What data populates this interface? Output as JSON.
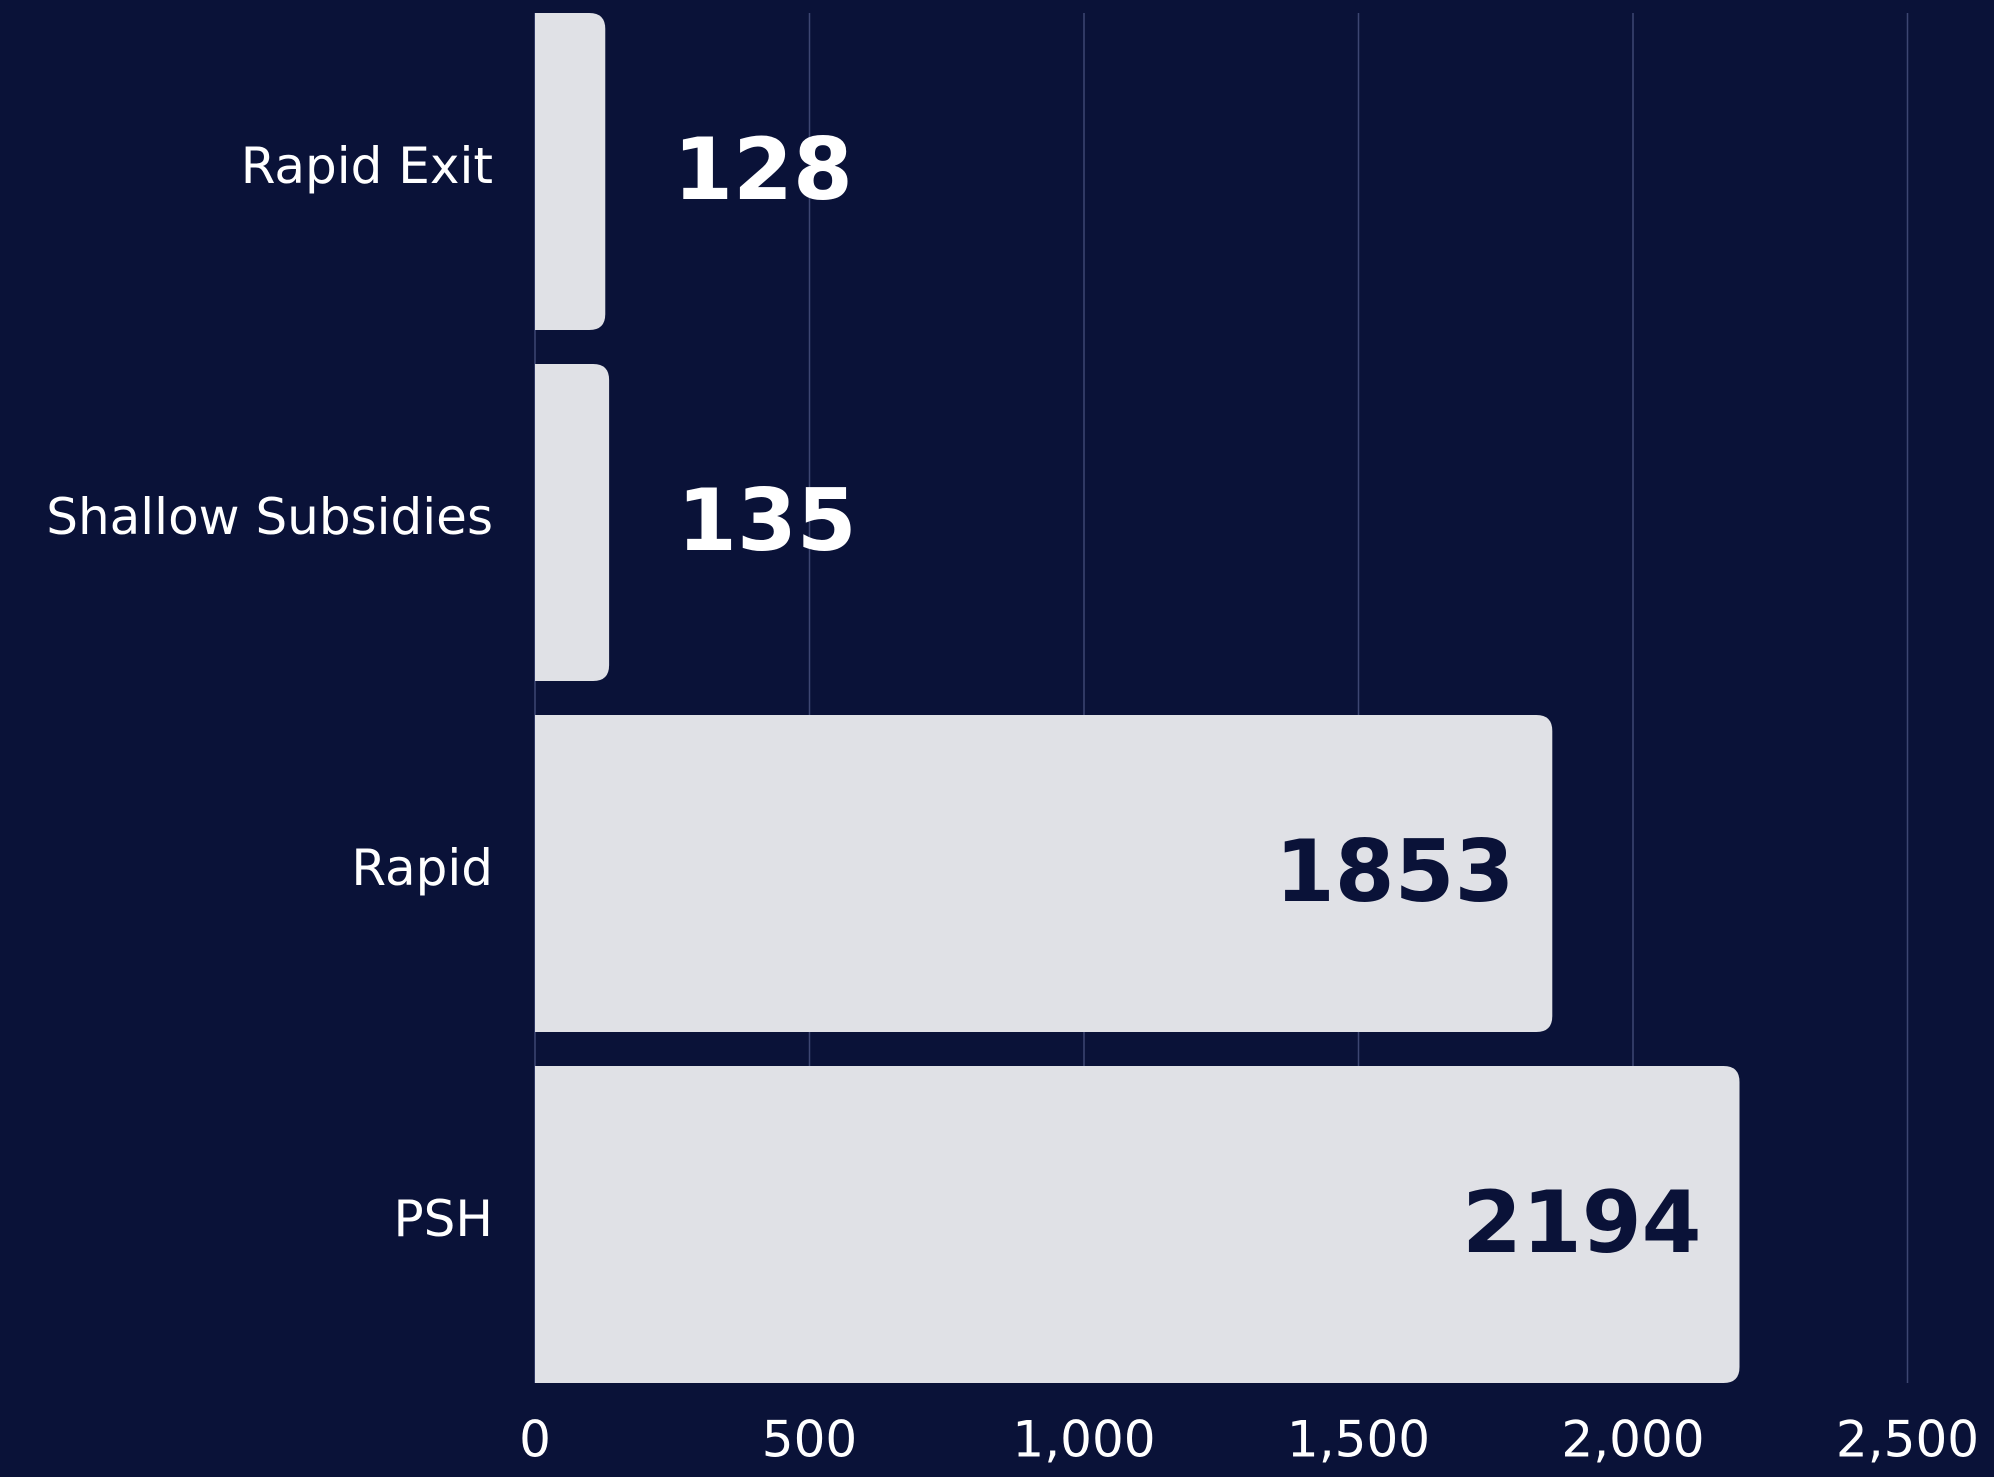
{
  "chart_data": {
    "type": "bar",
    "orientation": "horizontal",
    "categories": [
      "Rapid Exit",
      "Shallow Subsidies",
      "Rapid",
      "PSH"
    ],
    "values": [
      128,
      135,
      1853,
      2194
    ],
    "color": "#e0e1e6",
    "xlim": [
      0,
      2500
    ],
    "xticks": [
      0,
      500,
      {
        "value": 1000,
        "label": "1,000"
      },
      {
        "value": 1500,
        "label": "1,500"
      },
      {
        "value": 2000,
        "label": "2,000"
      },
      {
        "value": 2500,
        "label": "2,500"
      }
    ],
    "grid": true
  }
}
